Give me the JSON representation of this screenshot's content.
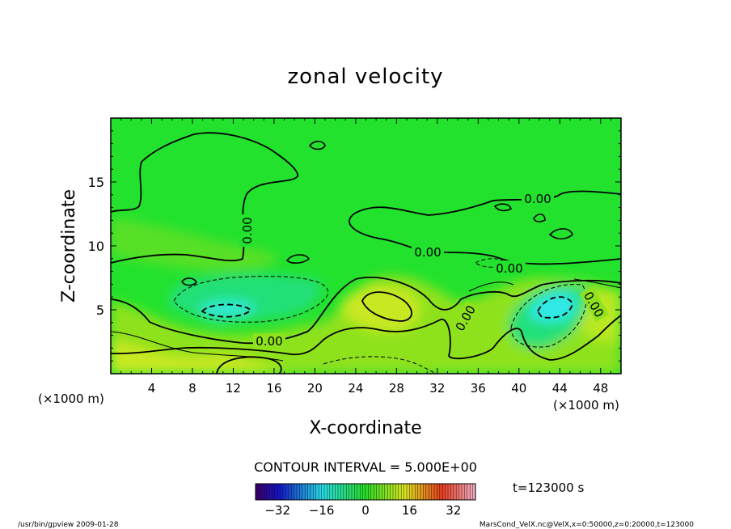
{
  "chart_data": {
    "type": "heatmap",
    "title": "zonal velocity",
    "xlabel": "X-coordinate",
    "ylabel": "Z-coordinate",
    "x_unit_left": "(×1000 m)",
    "x_unit_right": "(×1000 m)",
    "xlim": [
      0,
      50
    ],
    "ylim": [
      0,
      20
    ],
    "x_ticks": [
      4,
      8,
      12,
      16,
      20,
      24,
      28,
      32,
      36,
      40,
      44,
      48
    ],
    "y_ticks": [
      5,
      10,
      15
    ],
    "contour_interval_text": "CONTOUR INTERVAL = 5.000E+00",
    "contour_labels": [
      {
        "text": "0.00",
        "x": 13.3,
        "y": 11.0,
        "rotate": -90
      },
      {
        "text": "0.00",
        "x": 41.8,
        "y": 13.7,
        "rotate": 0
      },
      {
        "text": "0.00",
        "x": 30.7,
        "y": 9.6,
        "rotate": 0
      },
      {
        "text": "0.00",
        "x": 38.8,
        "y": 8.1,
        "rotate": 0
      },
      {
        "text": "0.00",
        "x": 15.6,
        "y": 2.5,
        "rotate": 0
      },
      {
        "text": "0.00",
        "x": 34.6,
        "y": 4.5,
        "rotate": -60
      },
      {
        "text": "0.00",
        "x": 47.2,
        "y": 5.5,
        "rotate": 60
      }
    ],
    "colorbar": {
      "ticks": [
        -32,
        -16,
        0,
        16,
        32
      ],
      "tick_labels": [
        "−32",
        "−16",
        "0",
        "16",
        "32"
      ],
      "range": [
        -40,
        40
      ]
    },
    "time_label": "t=123000 s",
    "footer_left": "/usr/bin/gpview  2009-01-28",
    "footer_right": "MarsCond_VelX.nc@VelX,x=0:50000,z=0:20000,t=123000"
  },
  "colors": {
    "background_field": "#22e22e",
    "positive_low": "#8ee21e",
    "positive_mid": "#c8e820",
    "positive_high": "#f0f020",
    "negative_low": "#20e078",
    "negative_mid": "#2ae8c0",
    "negative_high": "#30e8e8"
  }
}
